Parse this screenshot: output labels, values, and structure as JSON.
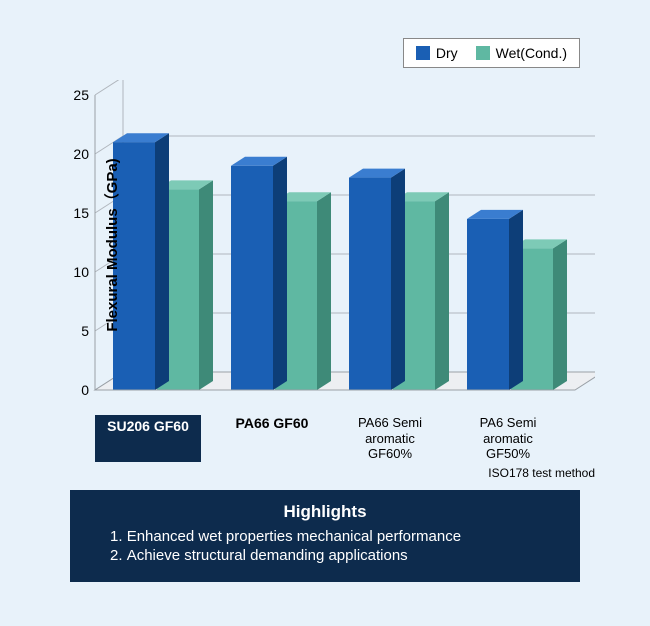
{
  "chart": {
    "type": "bar-3d",
    "ylabel": "Flexural Modulus（GPa)",
    "ylim": [
      0,
      25
    ],
    "ytick_step": 5,
    "yticks": [
      0,
      5,
      10,
      15,
      20,
      25
    ],
    "series": [
      {
        "name": "Dry",
        "color": "#1a5fb4"
      },
      {
        "name": "Wet(Cond.)",
        "color": "#5fb8a2"
      }
    ],
    "side_shade_dry": "#0d3e78",
    "top_shade_dry": "#3a7dd0",
    "side_shade_wet": "#3e8a78",
    "top_shade_wet": "#7dcab6",
    "floor_fill": "#edeff2",
    "floor_stroke": "#9aa0a6",
    "grid_stroke": "#b0b6bd",
    "back_wall_stroke": "#b0b6bd",
    "categories": [
      {
        "label": "SU206 GF60",
        "dry": 21.0,
        "wet": 17.0,
        "highlight": true
      },
      {
        "label": "PA66 GF60",
        "dry": 19.0,
        "wet": 16.0,
        "bold": true
      },
      {
        "label": "PA66 Semi\naromatic\nGF60%",
        "dry": 18.0,
        "wet": 16.0
      },
      {
        "label": "PA6 Semi\naromatic\nGF50%",
        "dry": 14.5,
        "wet": 12.0
      }
    ],
    "test_method": "ISO178 test method",
    "background_color": "#e8f2fa",
    "label_fontsize": 15
  },
  "highlights": {
    "title": "Highlights",
    "items": [
      "Enhanced wet properties mechanical performance",
      "Achieve structural demanding applications"
    ],
    "background_color": "#0d2b4d",
    "text_color": "#ffffff"
  }
}
